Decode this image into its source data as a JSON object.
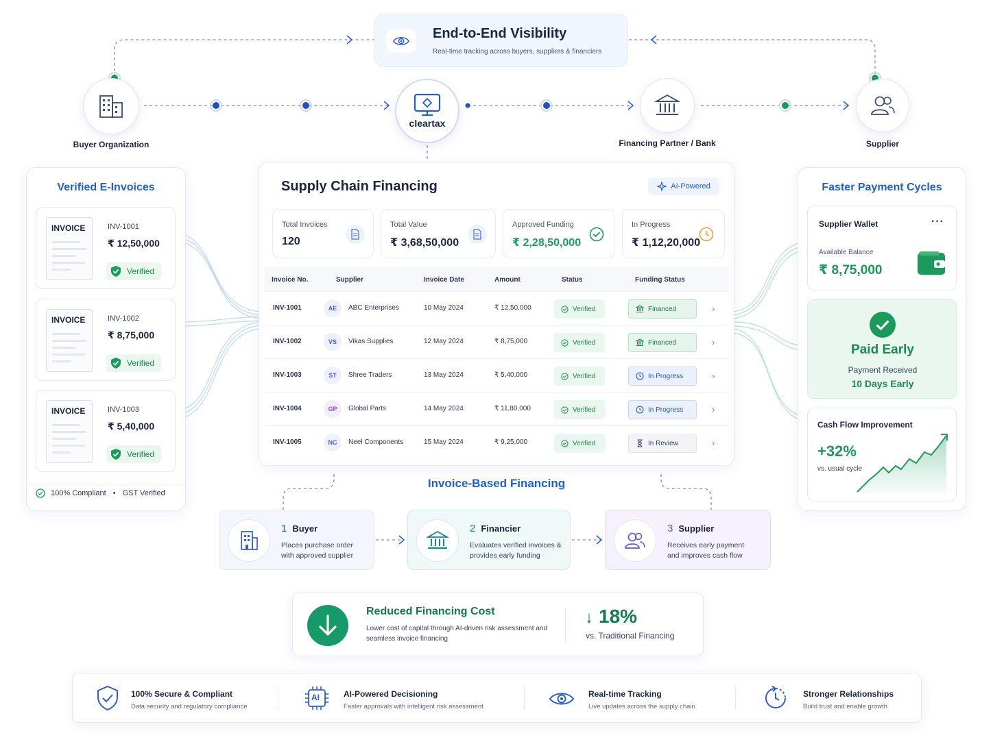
{
  "visibility": {
    "title": "End-to-End Visibility",
    "subtitle": "Real-time tracking across buyers, suppliers & financiers"
  },
  "nodes": {
    "buyer": "Buyer Organization",
    "platform": "cleartax",
    "bank": "Financing Partner / Bank",
    "supplier": "Supplier"
  },
  "einvoices": {
    "title": "Verified E-Invoices",
    "doc_label": "INVOICE",
    "items": [
      {
        "number": "INV-1001",
        "amount": "₹ 12,50,000",
        "status": "Verified"
      },
      {
        "number": "INV-1002",
        "amount": "₹ 8,75,000",
        "status": "Verified"
      },
      {
        "number": "INV-1003",
        "amount": "₹ 5,40,000",
        "status": "Verified"
      }
    ],
    "footer_compliant": "100% Compliant",
    "footer_dot": "•",
    "footer_gst": "GST Verified"
  },
  "scf": {
    "title": "Supply Chain Financing",
    "badge": "AI-Powered",
    "stats": [
      {
        "label": "Total Invoices",
        "value": "120"
      },
      {
        "label": "Total Value",
        "value": "₹ 3,68,50,000"
      },
      {
        "label": "Approved Funding",
        "value": "₹ 2,28,50,000"
      },
      {
        "label": "In Progress",
        "value": "₹ 1,12,20,000"
      }
    ],
    "columns": [
      "Invoice No.",
      "Supplier",
      "Invoice Date",
      "Amount",
      "Status",
      "Funding Status"
    ],
    "rows": [
      {
        "inv": "INV-1001",
        "initials": "AE",
        "supplier": "ABC Enterprises",
        "date": "10 May 2024",
        "amount": "₹ 12,50,000",
        "status": "Verified",
        "funding": "Financed",
        "chev": "›"
      },
      {
        "inv": "INV-1002",
        "initials": "VS",
        "supplier": "Vikas Supplies",
        "date": "12 May 2024",
        "amount": "₹ 8,75,000",
        "status": "Verified",
        "funding": "Financed",
        "chev": "›"
      },
      {
        "inv": "INV-1003",
        "initials": "ST",
        "supplier": "Shree Traders",
        "date": "13 May 2024",
        "amount": "₹ 5,40,000",
        "status": "Verified",
        "funding": "In Progress",
        "chev": "›"
      },
      {
        "inv": "INV-1004",
        "initials": "GP",
        "supplier": "Global Parts",
        "date": "14 May 2024",
        "amount": "₹ 11,80,000",
        "status": "Verified",
        "funding": "In Progress",
        "chev": "›"
      },
      {
        "inv": "INV-1005",
        "initials": "NC",
        "supplier": "Neel Components",
        "date": "15 May 2024",
        "amount": "₹ 9,25,000",
        "status": "Verified",
        "funding": "In Review",
        "chev": "›"
      }
    ]
  },
  "faster": {
    "title": "Faster Payment Cycles",
    "wallet_title": "Supplier Wallet",
    "wallet_menu": "···",
    "balance_label": "Available Balance",
    "balance_value": "₹ 8,75,000",
    "paid_title": "Paid Early",
    "paid_sub": "Payment Received",
    "paid_days": "10 Days Early",
    "cash_title": "Cash Flow Improvement",
    "cash_value": "+32%",
    "cash_sub": "vs. usual cycle"
  },
  "invoice_financing": {
    "title": "Invoice-Based Financing",
    "steps": [
      {
        "num": "1",
        "title": "Buyer",
        "desc": "Places purchase order with approved supplier"
      },
      {
        "num": "2",
        "title": "Financier",
        "desc": "Evaluates verified invoices & provides early funding"
      },
      {
        "num": "3",
        "title": "Supplier",
        "desc": "Receives early payment and improves cash flow"
      }
    ]
  },
  "reduced": {
    "title": "Reduced Financing Cost",
    "desc": "Lower cost of capital through AI-driven risk assessment and seamless invoice financing",
    "arrow": "↓",
    "value": "18%",
    "sub": "vs. Traditional Financing"
  },
  "features": [
    {
      "title": "100% Secure & Compliant",
      "desc": "Data security and regulatory compliance"
    },
    {
      "title": "AI-Powered Decisioning",
      "desc": "Faster approvals with intelligent risk assessment"
    },
    {
      "title": "Real-time Tracking",
      "desc": "Live updates across the supply chain"
    },
    {
      "title": "Stronger Relationships",
      "desc": "Build trust and enable growth"
    }
  ],
  "icons": {
    "ai_chip_text": "AI"
  },
  "colors": {
    "primary_blue": "#1f5fd6",
    "success_green": "#1a9a5b",
    "teal": "#0f8a8a",
    "purple": "#6a55c8"
  }
}
